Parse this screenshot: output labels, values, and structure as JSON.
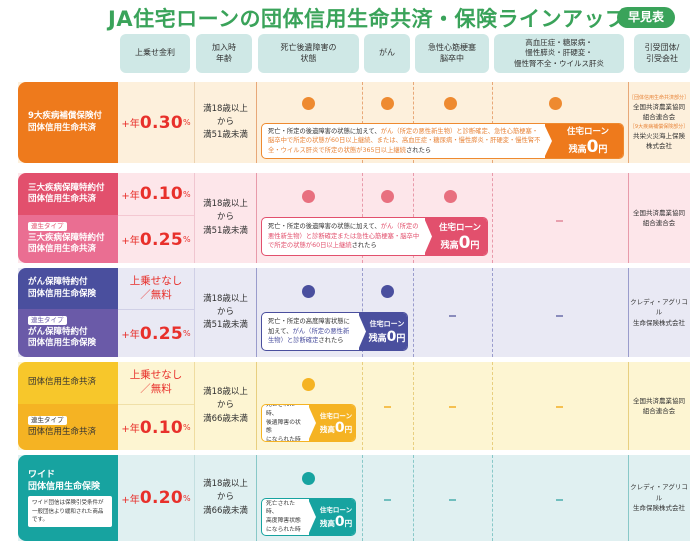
{
  "title": "JA住宅ローンの団体信用生命共済・保険ラインアップ",
  "badge": "早見表",
  "headers": [
    "上乗せ金利",
    "加入時\n年齢",
    "死亡後遺障害の\n状態",
    "がん",
    "急性心筋梗塞\n脳卒中",
    "高血圧症・糖尿病・\n慢性膵炎・肝硬変・\n慢性腎不全・ウイルス肝炎",
    "引受団体/\n引受会社"
  ],
  "zero_label": {
    "line1": "住宅ローン",
    "prefix": "残高",
    "zero": "0",
    "yen": "円"
  },
  "dash": "—",
  "rows": [
    {
      "products": [
        {
          "name": "9大疾病補償保険付\n団体信用生命共済",
          "rate_pre": "+年",
          "rate": "0.30",
          "rate_unit": "%"
        }
      ],
      "age": "満18歳以上\nから\n満51歳未満",
      "coverage": [
        "●",
        "●",
        "●",
        "●"
      ],
      "condition_plain1": "死亡・所定の後遺障害の状態に加えて、",
      "condition_hl": "がん（所定の悪性新生物）と診断確定、急性心筋梗塞・脳卒中で所定の状態が60日以上継続、または、高血圧症・糖尿病・慢性膵炎・肝硬変・慢性腎不全・ウイルス肝炎で所定の状態が365日以上継続",
      "condition_plain2": "されたら",
      "company_tag1": "［団体信用生命共済部分］",
      "company1": "全国共済農業協同\n組合連合会",
      "company_tag2": "［9大疾病補償保険部分］",
      "company2": "共栄火災海上保険\n株式会社",
      "color": "#ee7a1c"
    },
    {
      "products": [
        {
          "name": "三大疾病保障特約付\n団体信用生命共済",
          "rate_pre": "+年",
          "rate": "0.10",
          "rate_unit": "%"
        },
        {
          "tag": "連生タイプ",
          "name": "三大疾病保障特約付\n団体信用生命共済",
          "rate_pre": "+年",
          "rate": "0.25",
          "rate_unit": "%"
        }
      ],
      "age": "満18歳以上\nから\n満51歳未満",
      "condition_plain1": "死亡・所定の後遺障害の状態に加えて、",
      "condition_hl": "がん（所定の悪性新生物）と診断確定または急性心筋梗塞・脳卒中で所定の状態が60日以上継続",
      "condition_plain2": "されたら",
      "company1": "全国共済農業協同\n組合連合会",
      "color": "#e2506d"
    },
    {
      "products": [
        {
          "name": "がん保障特約付\n団体信用生命保険",
          "rate_text": "上乗せなし\n／無料"
        },
        {
          "tag": "連生タイプ",
          "name": "がん保障特約付\n団体信用生命保険",
          "rate_pre": "+年",
          "rate": "0.25",
          "rate_unit": "%"
        }
      ],
      "age": "満18歳以上\nから\n満51歳未満",
      "condition_plain1": "死亡・所定の高度障害状態に加えて、",
      "condition_hl": "がん（所定の悪性新生物）と診断確定",
      "condition_plain2": "されたら",
      "company1": "クレディ・アグリコル\n生命保険株式会社",
      "color": "#4a4f9e"
    },
    {
      "products": [
        {
          "name": "団体信用生命共済",
          "rate_text": "上乗せなし\n／無料"
        },
        {
          "tag": "連生タイプ",
          "name": "団体信用生命共済",
          "rate_pre": "+年",
          "rate": "0.10",
          "rate_unit": "%"
        }
      ],
      "age": "満18歳以上\nから\n満66歳未満",
      "condition_plain1": "死亡された時、\n後遺障害の状態\nになられた時",
      "company1": "全国共済農業協同\n組合連合会",
      "color": "#f5b323"
    },
    {
      "products": [
        {
          "name": "ワイド\n団体信用生命保険",
          "note": "ワイド団信は保険引受条件が\n一般団信より緩和された商品です。",
          "rate_pre": "+年",
          "rate": "0.20",
          "rate_unit": "%"
        }
      ],
      "age": "満18歳以上\nから\n満66歳未満",
      "condition_plain1": "死亡された時、\n高度障害状態\nになられた時",
      "company1": "クレディ・アグリコル\n生命保険株式会社",
      "color": "#17a3a0"
    }
  ]
}
